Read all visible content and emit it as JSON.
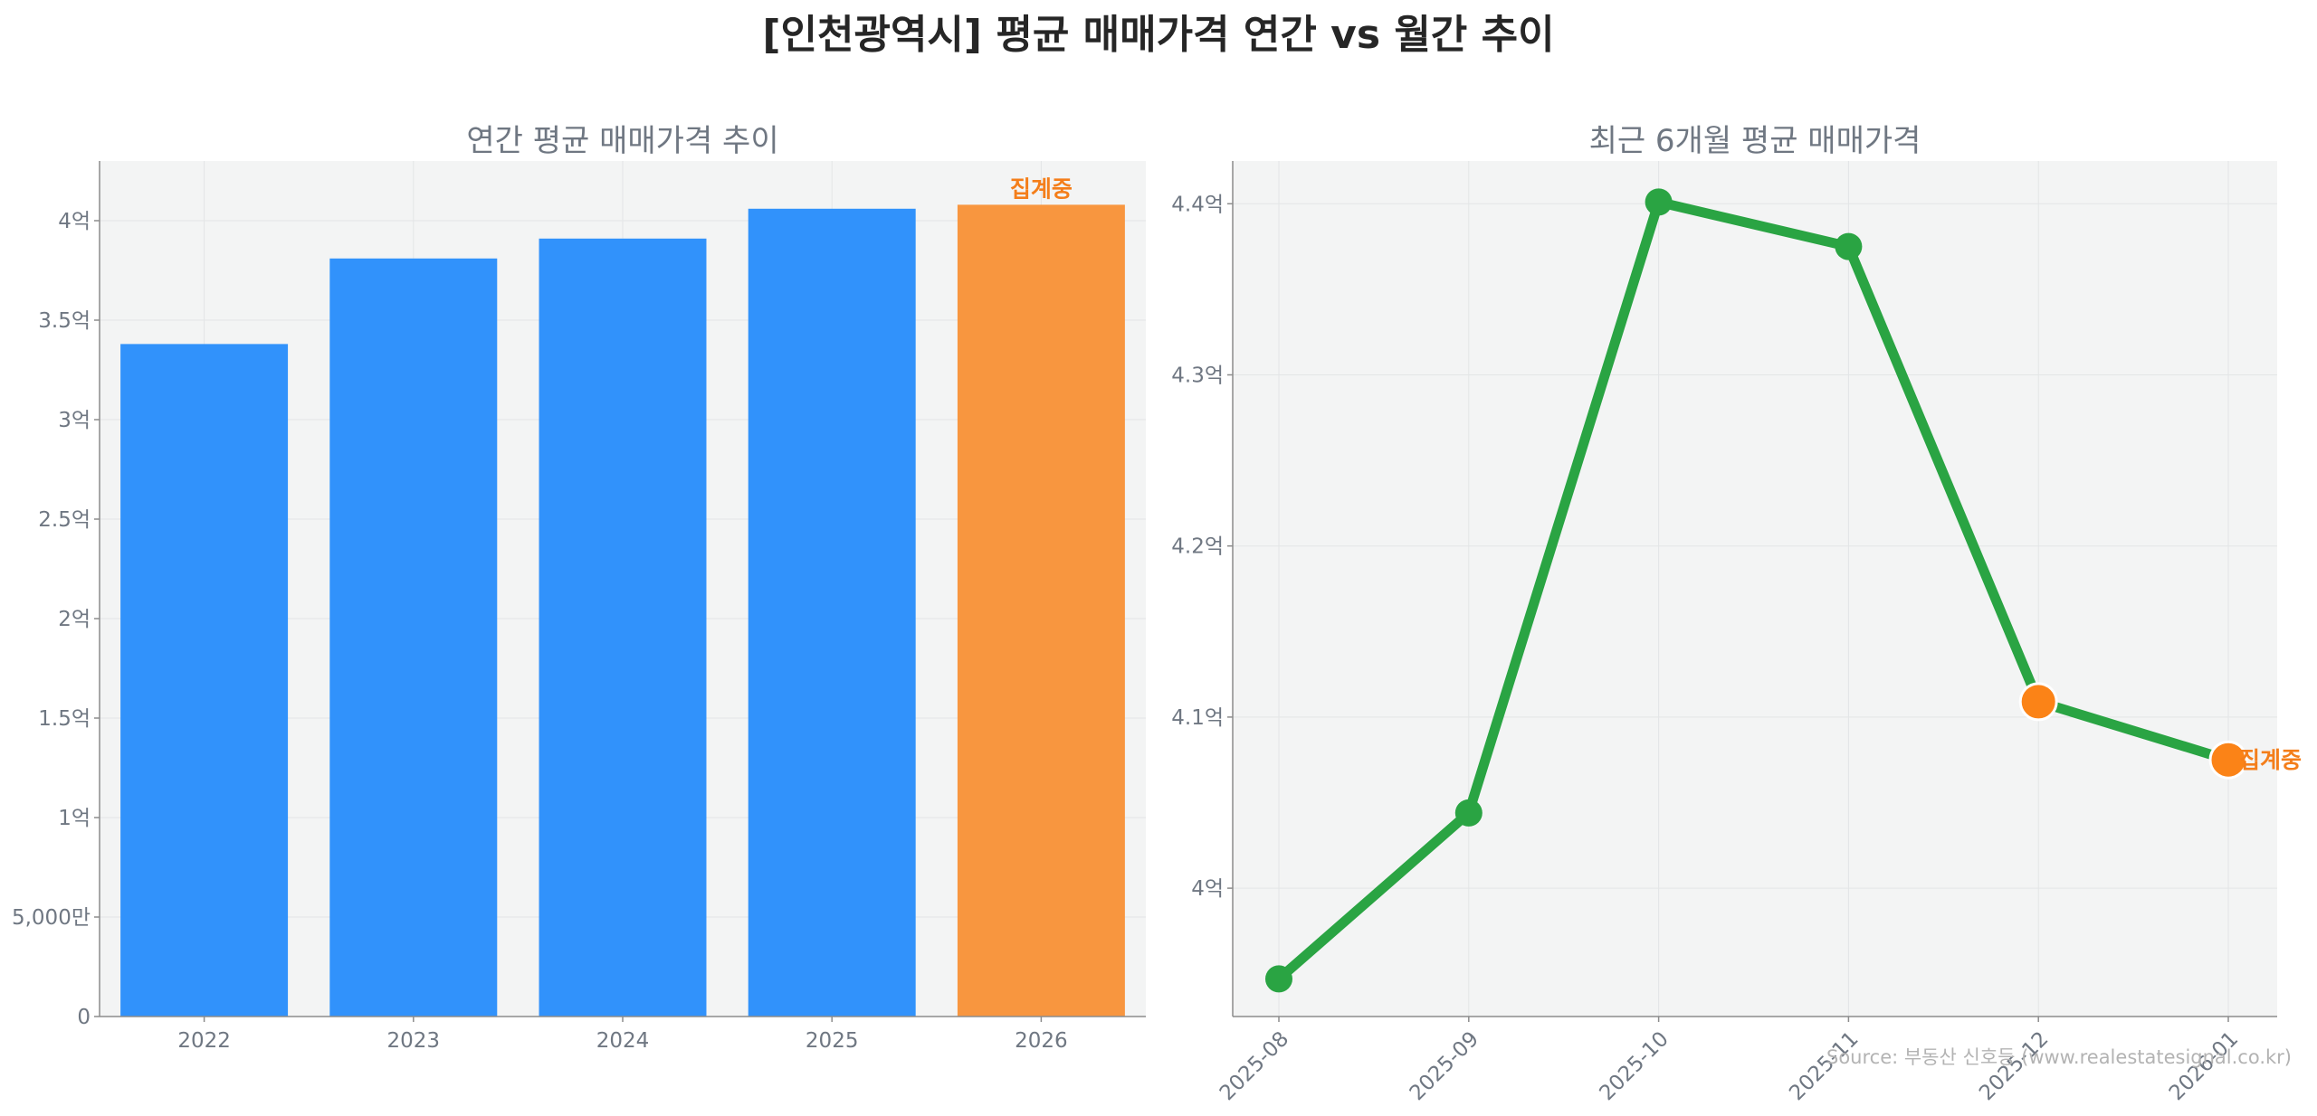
{
  "title": "[인천광역시] 평균 매매가격 연간 vs 월간 추이",
  "source": "Source: 부동산 신호등 (www.realestatesignal.co.kr)",
  "colors": {
    "bar": "#3192fb",
    "bar_highlight": "#f8963f",
    "line": "#2aa443",
    "line_highlight": "#fb8317",
    "note": "#f47e1a",
    "panel_bg": "#f3f4f4"
  },
  "chart_data": [
    {
      "type": "bar",
      "title": "연간 평균 매매가격 추이",
      "categories": [
        "2022",
        "2023",
        "2024",
        "2025",
        "2026"
      ],
      "values": [
        33800,
        38100,
        39100,
        40600,
        40800
      ],
      "unit": "만원",
      "ylim": [
        0,
        43000
      ],
      "yticks": [
        {
          "value": 0,
          "label": "0"
        },
        {
          "value": 5000,
          "label": "5,000만"
        },
        {
          "value": 10000,
          "label": "1억"
        },
        {
          "value": 15000,
          "label": "1.5억"
        },
        {
          "value": 20000,
          "label": "2억"
        },
        {
          "value": 25000,
          "label": "2.5억"
        },
        {
          "value": 30000,
          "label": "3억"
        },
        {
          "value": 35000,
          "label": "3.5억"
        },
        {
          "value": 40000,
          "label": "4억"
        }
      ],
      "highlight_index": 4,
      "annotation": "집계중",
      "grid": true
    },
    {
      "type": "line",
      "title": "최근 6개월 평균 매매가격",
      "x": [
        "2025-08",
        "2025-09",
        "2025-10",
        "2025-11",
        "2025-12",
        "2026-01"
      ],
      "values": [
        39470,
        40440,
        44010,
        43750,
        41090,
        40750
      ],
      "unit": "만원",
      "ylim": [
        39250,
        44250
      ],
      "yticks": [
        {
          "value": 40000,
          "label": "4억"
        },
        {
          "value": 41000,
          "label": "4.1억"
        },
        {
          "value": 42000,
          "label": "4.2억"
        },
        {
          "value": 43000,
          "label": "4.3억"
        },
        {
          "value": 44000,
          "label": "4.4억"
        }
      ],
      "highlight_indices": [
        4,
        5
      ],
      "annotation": "집계중",
      "grid": true
    }
  ]
}
